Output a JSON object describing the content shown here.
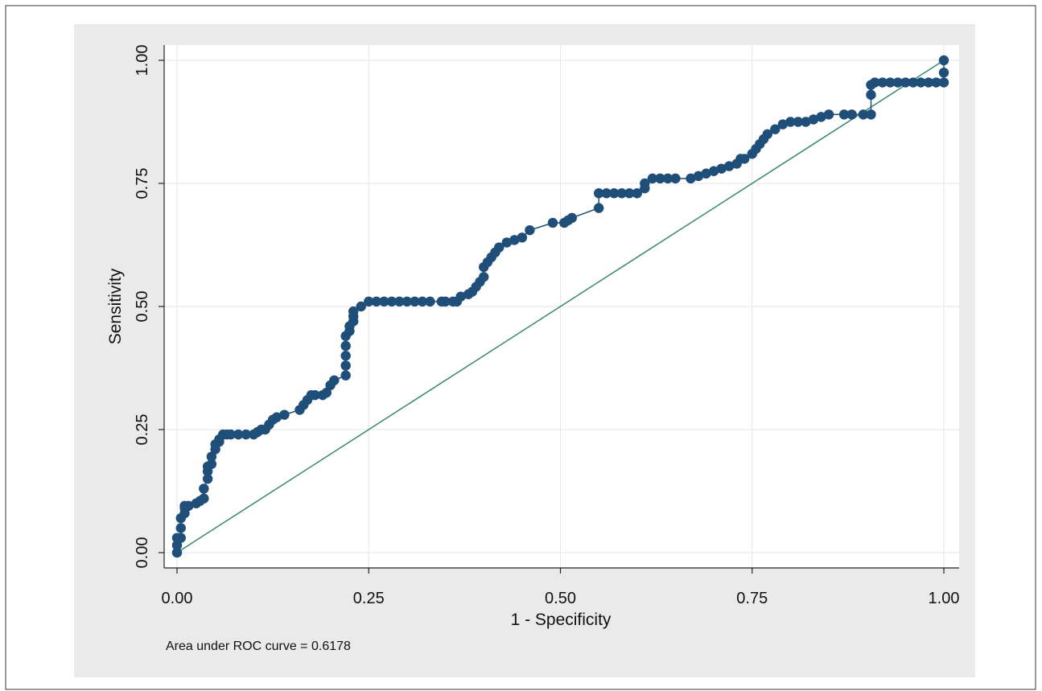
{
  "chart_data": {
    "type": "line",
    "xlabel": "1 - Specificity",
    "ylabel": "Sensitivity",
    "xlim": [
      0,
      1
    ],
    "ylim": [
      0,
      1
    ],
    "xticks": [
      "0.00",
      "0.25",
      "0.50",
      "0.75",
      "1.00"
    ],
    "yticks": [
      "0.00",
      "0.25",
      "0.50",
      "0.75",
      "1.00"
    ],
    "grid": true,
    "legend": "none",
    "annotation": "Area under ROC curve = 0.6178",
    "colors": {
      "curve": "#1f4e79",
      "reference": "#3a8a68",
      "plot_bg": "#eaeaea",
      "plot_area": "#ffffff"
    },
    "series": [
      {
        "type": "line+markers",
        "x": [
          0,
          0,
          0,
          0.005,
          0.005,
          0.005,
          0.01,
          0.01,
          0.01,
          0.015,
          0.025,
          0.03,
          0.035,
          0.035,
          0.04,
          0.04,
          0.04,
          0.045,
          0.045,
          0.05,
          0.05,
          0.055,
          0.055,
          0.06,
          0.065,
          0.07,
          0.08,
          0.09,
          0.1,
          0.105,
          0.11,
          0.115,
          0.12,
          0.125,
          0.13,
          0.14,
          0.16,
          0.165,
          0.17,
          0.175,
          0.18,
          0.19,
          0.195,
          0.2,
          0.205,
          0.22,
          0.22,
          0.22,
          0.22,
          0.22,
          0.225,
          0.225,
          0.23,
          0.23,
          0.23,
          0.24,
          0.25,
          0.26,
          0.27,
          0.28,
          0.29,
          0.3,
          0.31,
          0.32,
          0.33,
          0.345,
          0.35,
          0.36,
          0.365,
          0.37,
          0.38,
          0.385,
          0.39,
          0.395,
          0.4,
          0.4,
          0.405,
          0.41,
          0.415,
          0.42,
          0.43,
          0.44,
          0.45,
          0.46,
          0.49,
          0.505,
          0.51,
          0.515,
          0.55,
          0.55,
          0.56,
          0.57,
          0.58,
          0.59,
          0.6,
          0.61,
          0.61,
          0.62,
          0.63,
          0.64,
          0.65,
          0.67,
          0.68,
          0.69,
          0.7,
          0.71,
          0.72,
          0.73,
          0.735,
          0.74,
          0.75,
          0.755,
          0.76,
          0.765,
          0.77,
          0.78,
          0.79,
          0.8,
          0.81,
          0.82,
          0.83,
          0.84,
          0.85,
          0.87,
          0.88,
          0.895,
          0.905,
          0.905,
          0.905,
          0.91,
          0.92,
          0.93,
          0.94,
          0.95,
          0.96,
          0.97,
          0.98,
          0.99,
          1,
          1,
          1
        ],
        "y": [
          0,
          0.015,
          0.03,
          0.03,
          0.05,
          0.07,
          0.08,
          0.09,
          0.095,
          0.095,
          0.1,
          0.105,
          0.11,
          0.13,
          0.15,
          0.165,
          0.175,
          0.18,
          0.195,
          0.21,
          0.22,
          0.225,
          0.23,
          0.24,
          0.24,
          0.24,
          0.24,
          0.24,
          0.24,
          0.245,
          0.25,
          0.25,
          0.26,
          0.27,
          0.275,
          0.28,
          0.29,
          0.3,
          0.31,
          0.32,
          0.32,
          0.32,
          0.325,
          0.34,
          0.35,
          0.36,
          0.38,
          0.4,
          0.42,
          0.44,
          0.45,
          0.46,
          0.47,
          0.48,
          0.49,
          0.5,
          0.51,
          0.51,
          0.51,
          0.51,
          0.51,
          0.51,
          0.51,
          0.51,
          0.51,
          0.51,
          0.51,
          0.51,
          0.51,
          0.52,
          0.525,
          0.53,
          0.54,
          0.55,
          0.56,
          0.58,
          0.59,
          0.6,
          0.61,
          0.62,
          0.63,
          0.635,
          0.64,
          0.655,
          0.67,
          0.67,
          0.675,
          0.68,
          0.7,
          0.73,
          0.73,
          0.73,
          0.73,
          0.73,
          0.73,
          0.74,
          0.75,
          0.76,
          0.76,
          0.76,
          0.76,
          0.76,
          0.765,
          0.77,
          0.775,
          0.78,
          0.785,
          0.79,
          0.8,
          0.8,
          0.81,
          0.82,
          0.83,
          0.84,
          0.85,
          0.86,
          0.87,
          0.875,
          0.875,
          0.875,
          0.88,
          0.885,
          0.89,
          0.89,
          0.89,
          0.89,
          0.89,
          0.93,
          0.95,
          0.955,
          0.955,
          0.955,
          0.955,
          0.955,
          0.955,
          0.955,
          0.955,
          0.955,
          0.955,
          0.975,
          1
        ]
      },
      {
        "type": "reference",
        "x": [
          0,
          1
        ],
        "y": [
          0,
          1
        ]
      }
    ]
  }
}
